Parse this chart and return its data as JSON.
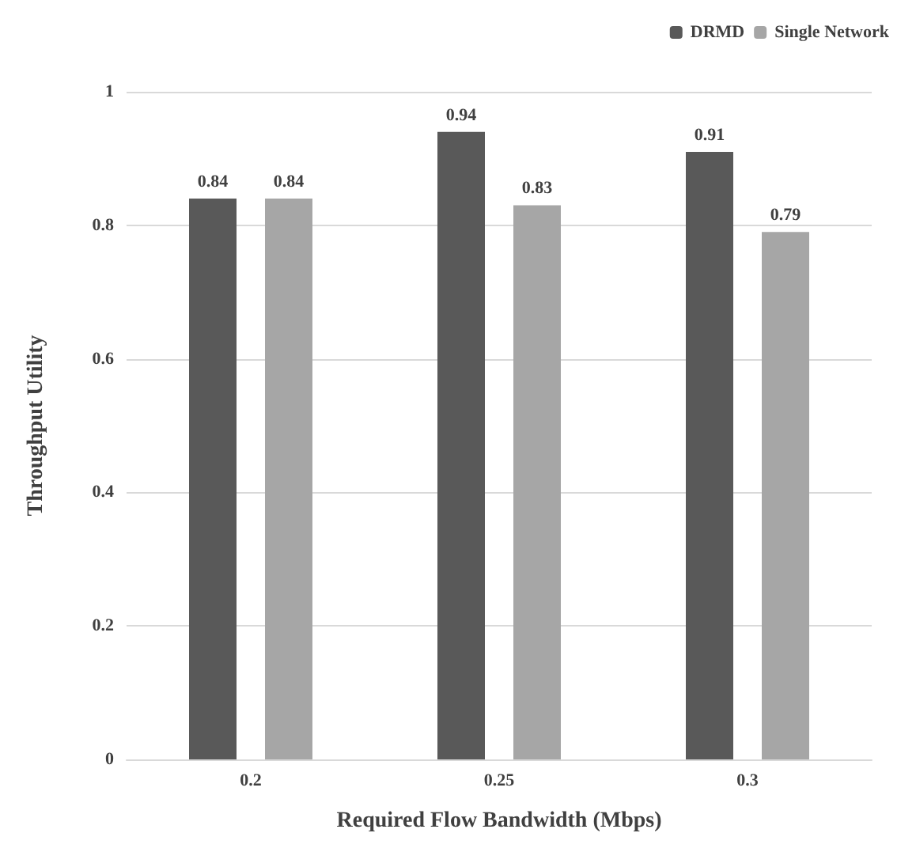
{
  "chart_data": {
    "type": "bar",
    "xlabel": "Required Flow Bandwidth (Mbps)",
    "ylabel": "Throughput Utility",
    "categories": [
      "0.2",
      "0.25",
      "0.3"
    ],
    "series": [
      {
        "name": "DRMD",
        "color": "#595959",
        "values": [
          0.84,
          0.94,
          0.91
        ]
      },
      {
        "name": "Single Network",
        "color": "#a6a6a6",
        "values": [
          0.84,
          0.83,
          0.79
        ]
      }
    ],
    "ylim": [
      0,
      1
    ],
    "yticks": [
      0,
      0.2,
      0.4,
      0.6,
      0.8,
      1
    ],
    "grid": "y",
    "legend": "top right",
    "data_labels": true
  }
}
